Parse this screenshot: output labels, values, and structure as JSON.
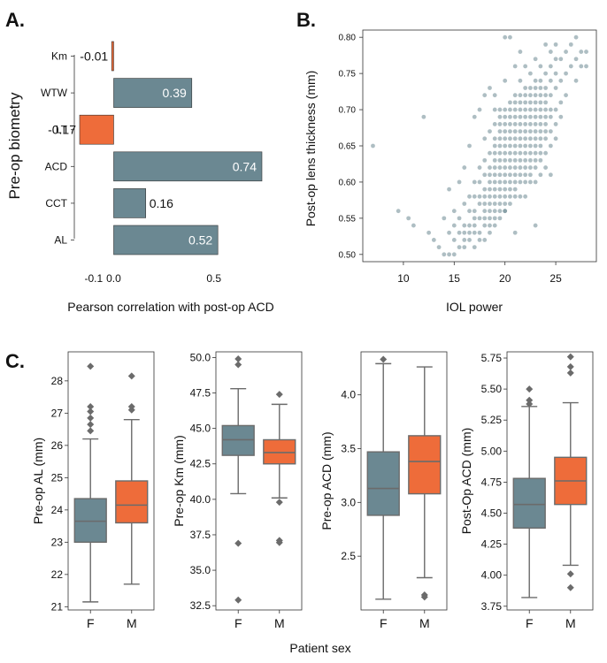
{
  "panel_labels": {
    "a": "A.",
    "b": "B.",
    "c": "C."
  },
  "colors": {
    "gray": "#6b8892",
    "orange": "#ee6c3a",
    "scatter": "#6b8892",
    "axis": "#333333",
    "whisker": "#6b6b6b",
    "outlier": "#6b6b6b"
  },
  "chart_data": [
    {
      "id": "A",
      "type": "bar",
      "orientation": "horizontal",
      "categories": [
        "Km",
        "WTW",
        "LT",
        "ACD",
        "CCT",
        "AL"
      ],
      "values": [
        -0.01,
        0.39,
        -0.17,
        0.74,
        0.16,
        0.52
      ],
      "value_labels": [
        "-0.01",
        "0.39",
        "-0.17",
        "0.74",
        "0.16",
        "0.52"
      ],
      "bar_colors": [
        "orange",
        "gray",
        "orange",
        "gray",
        "gray",
        "gray"
      ],
      "xlabel": "Pearson correlation with post-op ACD",
      "ylabel": "Pre-op biometry",
      "xlim": [
        -0.17,
        0.74
      ],
      "xticks": [
        -0.1,
        0.0,
        0.5
      ],
      "xtick_labels": [
        "-0.1",
        "0.0",
        "0.5"
      ]
    },
    {
      "id": "B",
      "type": "scatter",
      "xlabel": "IOL power",
      "ylabel": "Post-op lens thickness (mm)",
      "xlim": [
        6,
        29
      ],
      "ylim": [
        0.49,
        0.81
      ],
      "xticks": [
        10,
        15,
        20,
        25
      ],
      "xtick_labels": [
        "10",
        "15",
        "20",
        "25"
      ],
      "yticks": [
        0.5,
        0.55,
        0.6,
        0.65,
        0.7,
        0.75,
        0.8
      ],
      "ytick_labels": [
        "0.50",
        "0.55",
        "0.60",
        "0.65",
        "0.70",
        "0.75",
        "0.80"
      ],
      "points": [
        [
          7,
          0.65
        ],
        [
          9.5,
          0.56
        ],
        [
          10.5,
          0.55
        ],
        [
          11,
          0.54
        ],
        [
          12,
          0.69
        ],
        [
          12.5,
          0.53
        ],
        [
          13,
          0.52
        ],
        [
          13.5,
          0.51
        ],
        [
          14,
          0.5
        ],
        [
          14,
          0.55
        ],
        [
          14.5,
          0.5
        ],
        [
          14.5,
          0.53
        ],
        [
          14.5,
          0.59
        ],
        [
          15,
          0.5
        ],
        [
          15,
          0.52
        ],
        [
          15,
          0.54
        ],
        [
          15,
          0.56
        ],
        [
          15.5,
          0.51
        ],
        [
          15.5,
          0.53
        ],
        [
          15.5,
          0.55
        ],
        [
          15.5,
          0.6
        ],
        [
          16,
          0.51
        ],
        [
          16,
          0.52
        ],
        [
          16,
          0.53
        ],
        [
          16,
          0.54
        ],
        [
          16,
          0.57
        ],
        [
          16,
          0.62
        ],
        [
          16.5,
          0.52
        ],
        [
          16.5,
          0.53
        ],
        [
          16.5,
          0.54
        ],
        [
          16.5,
          0.56
        ],
        [
          16.5,
          0.58
        ],
        [
          16.5,
          0.65
        ],
        [
          17,
          0.51
        ],
        [
          17,
          0.53
        ],
        [
          17,
          0.54
        ],
        [
          17,
          0.55
        ],
        [
          17,
          0.56
        ],
        [
          17,
          0.58
        ],
        [
          17,
          0.6
        ],
        [
          17,
          0.69
        ],
        [
          17.5,
          0.52
        ],
        [
          17.5,
          0.53
        ],
        [
          17.5,
          0.55
        ],
        [
          17.5,
          0.57
        ],
        [
          17.5,
          0.58
        ],
        [
          17.5,
          0.6
        ],
        [
          17.5,
          0.62
        ],
        [
          17.5,
          0.7
        ],
        [
          18,
          0.52
        ],
        [
          18,
          0.54
        ],
        [
          18,
          0.55
        ],
        [
          18,
          0.56
        ],
        [
          18,
          0.57
        ],
        [
          18,
          0.58
        ],
        [
          18,
          0.59
        ],
        [
          18,
          0.61
        ],
        [
          18,
          0.63
        ],
        [
          18,
          0.66
        ],
        [
          18,
          0.72
        ],
        [
          18.5,
          0.53
        ],
        [
          18.5,
          0.54
        ],
        [
          18.5,
          0.55
        ],
        [
          18.5,
          0.56
        ],
        [
          18.5,
          0.57
        ],
        [
          18.5,
          0.58
        ],
        [
          18.5,
          0.59
        ],
        [
          18.5,
          0.6
        ],
        [
          18.5,
          0.61
        ],
        [
          18.5,
          0.62
        ],
        [
          18.5,
          0.64
        ],
        [
          18.5,
          0.67
        ],
        [
          18.5,
          0.73
        ],
        [
          19,
          0.54
        ],
        [
          19,
          0.55
        ],
        [
          19,
          0.56
        ],
        [
          19,
          0.57
        ],
        [
          19,
          0.58
        ],
        [
          19,
          0.59
        ],
        [
          19,
          0.6
        ],
        [
          19,
          0.61
        ],
        [
          19,
          0.62
        ],
        [
          19,
          0.63
        ],
        [
          19,
          0.64
        ],
        [
          19,
          0.65
        ],
        [
          19,
          0.66
        ],
        [
          19,
          0.68
        ],
        [
          19,
          0.7
        ],
        [
          19,
          0.72
        ],
        [
          19.5,
          0.55
        ],
        [
          19.5,
          0.56
        ],
        [
          19.5,
          0.57
        ],
        [
          19.5,
          0.58
        ],
        [
          19.5,
          0.59
        ],
        [
          19.5,
          0.6
        ],
        [
          19.5,
          0.61
        ],
        [
          19.5,
          0.62
        ],
        [
          19.5,
          0.63
        ],
        [
          19.5,
          0.64
        ],
        [
          19.5,
          0.65
        ],
        [
          19.5,
          0.66
        ],
        [
          19.5,
          0.67
        ],
        [
          19.5,
          0.68
        ],
        [
          19.5,
          0.69
        ],
        [
          19.5,
          0.7
        ],
        [
          20,
          0.56
        ],
        [
          20,
          0.57
        ],
        [
          20,
          0.58
        ],
        [
          20,
          0.59
        ],
        [
          20,
          0.6
        ],
        [
          20,
          0.61
        ],
        [
          20,
          0.62
        ],
        [
          20,
          0.63
        ],
        [
          20,
          0.64
        ],
        [
          20,
          0.65
        ],
        [
          20,
          0.66
        ],
        [
          20,
          0.67
        ],
        [
          20,
          0.68
        ],
        [
          20,
          0.69
        ],
        [
          20,
          0.7
        ],
        [
          20,
          0.74
        ],
        [
          20,
          0.8
        ],
        [
          20.5,
          0.57
        ],
        [
          20.5,
          0.58
        ],
        [
          20.5,
          0.59
        ],
        [
          20.5,
          0.6
        ],
        [
          20.5,
          0.61
        ],
        [
          20.5,
          0.62
        ],
        [
          20.5,
          0.63
        ],
        [
          20.5,
          0.64
        ],
        [
          20.5,
          0.65
        ],
        [
          20.5,
          0.66
        ],
        [
          20.5,
          0.67
        ],
        [
          20.5,
          0.68
        ],
        [
          20.5,
          0.69
        ],
        [
          20.5,
          0.7
        ],
        [
          20.5,
          0.71
        ],
        [
          20.5,
          0.8
        ],
        [
          21,
          0.58
        ],
        [
          21,
          0.59
        ],
        [
          21,
          0.6
        ],
        [
          21,
          0.61
        ],
        [
          21,
          0.62
        ],
        [
          21,
          0.63
        ],
        [
          21,
          0.64
        ],
        [
          21,
          0.65
        ],
        [
          21,
          0.66
        ],
        [
          21,
          0.67
        ],
        [
          21,
          0.68
        ],
        [
          21,
          0.69
        ],
        [
          21,
          0.7
        ],
        [
          21,
          0.71
        ],
        [
          21,
          0.72
        ],
        [
          21,
          0.76
        ],
        [
          21.5,
          0.58
        ],
        [
          21.5,
          0.6
        ],
        [
          21.5,
          0.61
        ],
        [
          21.5,
          0.62
        ],
        [
          21.5,
          0.63
        ],
        [
          21.5,
          0.64
        ],
        [
          21.5,
          0.65
        ],
        [
          21.5,
          0.66
        ],
        [
          21.5,
          0.67
        ],
        [
          21.5,
          0.68
        ],
        [
          21.5,
          0.69
        ],
        [
          21.5,
          0.7
        ],
        [
          21.5,
          0.71
        ],
        [
          21.5,
          0.72
        ],
        [
          21.5,
          0.74
        ],
        [
          21.5,
          0.78
        ],
        [
          22,
          0.58
        ],
        [
          22,
          0.6
        ],
        [
          22,
          0.61
        ],
        [
          22,
          0.62
        ],
        [
          22,
          0.63
        ],
        [
          22,
          0.64
        ],
        [
          22,
          0.65
        ],
        [
          22,
          0.66
        ],
        [
          22,
          0.67
        ],
        [
          22,
          0.68
        ],
        [
          22,
          0.69
        ],
        [
          22,
          0.7
        ],
        [
          22,
          0.71
        ],
        [
          22,
          0.72
        ],
        [
          22,
          0.73
        ],
        [
          22,
          0.76
        ],
        [
          22.5,
          0.6
        ],
        [
          22.5,
          0.61
        ],
        [
          22.5,
          0.62
        ],
        [
          22.5,
          0.63
        ],
        [
          22.5,
          0.64
        ],
        [
          22.5,
          0.65
        ],
        [
          22.5,
          0.66
        ],
        [
          22.5,
          0.67
        ],
        [
          22.5,
          0.68
        ],
        [
          22.5,
          0.69
        ],
        [
          22.5,
          0.7
        ],
        [
          22.5,
          0.71
        ],
        [
          22.5,
          0.72
        ],
        [
          22.5,
          0.73
        ],
        [
          22.5,
          0.75
        ],
        [
          23,
          0.6
        ],
        [
          23,
          0.62
        ],
        [
          23,
          0.63
        ],
        [
          23,
          0.64
        ],
        [
          23,
          0.65
        ],
        [
          23,
          0.66
        ],
        [
          23,
          0.67
        ],
        [
          23,
          0.68
        ],
        [
          23,
          0.69
        ],
        [
          23,
          0.7
        ],
        [
          23,
          0.71
        ],
        [
          23,
          0.72
        ],
        [
          23,
          0.73
        ],
        [
          23,
          0.74
        ],
        [
          23,
          0.77
        ],
        [
          23.5,
          0.61
        ],
        [
          23.5,
          0.63
        ],
        [
          23.5,
          0.64
        ],
        [
          23.5,
          0.65
        ],
        [
          23.5,
          0.66
        ],
        [
          23.5,
          0.67
        ],
        [
          23.5,
          0.68
        ],
        [
          23.5,
          0.69
        ],
        [
          23.5,
          0.7
        ],
        [
          23.5,
          0.71
        ],
        [
          23.5,
          0.72
        ],
        [
          23.5,
          0.73
        ],
        [
          23.5,
          0.74
        ],
        [
          23.5,
          0.76
        ],
        [
          24,
          0.62
        ],
        [
          24,
          0.64
        ],
        [
          24,
          0.66
        ],
        [
          24,
          0.67
        ],
        [
          24,
          0.68
        ],
        [
          24,
          0.69
        ],
        [
          24,
          0.7
        ],
        [
          24,
          0.71
        ],
        [
          24,
          0.72
        ],
        [
          24,
          0.73
        ],
        [
          24,
          0.75
        ],
        [
          24,
          0.79
        ],
        [
          24.5,
          0.61
        ],
        [
          24.5,
          0.65
        ],
        [
          24.5,
          0.67
        ],
        [
          24.5,
          0.69
        ],
        [
          24.5,
          0.7
        ],
        [
          24.5,
          0.72
        ],
        [
          24.5,
          0.74
        ],
        [
          24.5,
          0.76
        ],
        [
          24.5,
          0.78
        ],
        [
          25,
          0.66
        ],
        [
          25,
          0.68
        ],
        [
          25,
          0.7
        ],
        [
          25,
          0.73
        ],
        [
          25,
          0.75
        ],
        [
          25,
          0.77
        ],
        [
          25,
          0.79
        ],
        [
          25.5,
          0.69
        ],
        [
          25.5,
          0.71
        ],
        [
          25.5,
          0.74
        ],
        [
          25.5,
          0.77
        ],
        [
          26,
          0.72
        ],
        [
          26,
          0.75
        ],
        [
          26,
          0.78
        ],
        [
          26.5,
          0.76
        ],
        [
          26.5,
          0.79
        ],
        [
          27,
          0.74
        ],
        [
          27,
          0.77
        ],
        [
          27,
          0.8
        ],
        [
          27.5,
          0.76
        ],
        [
          27.5,
          0.78
        ],
        [
          28,
          0.76
        ],
        [
          28,
          0.78
        ],
        [
          23,
          0.54
        ],
        [
          21,
          0.53
        ],
        [
          20,
          0.56
        ]
      ]
    },
    {
      "id": "C1",
      "type": "box",
      "ylabel": "Pre-op AL (mm)",
      "ylim": [
        20.9,
        28.9
      ],
      "yticks": [
        21,
        22,
        23,
        24,
        25,
        26,
        27,
        28
      ],
      "ytick_labels": [
        "21",
        "22",
        "23",
        "24",
        "25",
        "26",
        "27",
        "28"
      ],
      "categories": [
        "F",
        "M"
      ],
      "boxes": [
        {
          "q1": 23.0,
          "median": 23.65,
          "q3": 24.35,
          "whislo": 21.15,
          "whishi": 26.2,
          "fliers": [
            26.45,
            26.65,
            26.85,
            27.05,
            27.2,
            28.45
          ]
        },
        {
          "q1": 23.6,
          "median": 24.15,
          "q3": 24.9,
          "whislo": 21.7,
          "whishi": 26.8,
          "fliers": [
            27.1,
            27.2,
            28.15
          ]
        }
      ]
    },
    {
      "id": "C2",
      "type": "box",
      "ylabel": "Pre-op Km (mm)",
      "ylim": [
        32.2,
        50.4
      ],
      "yticks": [
        32.5,
        35.0,
        37.5,
        40.0,
        42.5,
        45.0,
        47.5,
        50.0
      ],
      "ytick_labels": [
        "32.5",
        "35.0",
        "37.5",
        "40.0",
        "42.5",
        "45.0",
        "47.5",
        "50.0"
      ],
      "categories": [
        "F",
        "M"
      ],
      "boxes": [
        {
          "q1": 43.1,
          "median": 44.2,
          "q3": 45.2,
          "whislo": 40.4,
          "whishi": 47.8,
          "fliers": [
            49.5,
            49.9,
            36.9,
            32.9
          ]
        },
        {
          "q1": 42.5,
          "median": 43.3,
          "q3": 44.2,
          "whislo": 40.1,
          "whishi": 46.7,
          "fliers": [
            47.4,
            39.8,
            37.1,
            36.95
          ]
        }
      ]
    },
    {
      "id": "C3",
      "type": "box",
      "ylabel": "Pre-op ACD  (mm)",
      "ylim": [
        2.0,
        4.4
      ],
      "yticks": [
        2.5,
        3.0,
        3.5,
        4.0
      ],
      "ytick_labels": [
        "2.5",
        "3.0",
        "3.5",
        "4.0"
      ],
      "categories": [
        "F",
        "M"
      ],
      "boxes": [
        {
          "q1": 2.88,
          "median": 3.13,
          "q3": 3.47,
          "whislo": 2.1,
          "whishi": 4.29,
          "fliers": [
            4.33
          ]
        },
        {
          "q1": 3.08,
          "median": 3.38,
          "q3": 3.62,
          "whislo": 2.3,
          "whishi": 4.26,
          "fliers": [
            2.14,
            2.12
          ]
        }
      ]
    },
    {
      "id": "C4",
      "type": "box",
      "ylabel": "Post-Op ACD (mm)",
      "ylim": [
        3.72,
        5.8
      ],
      "yticks": [
        3.75,
        4.0,
        4.25,
        4.5,
        4.75,
        5.0,
        5.25,
        5.5,
        5.75
      ],
      "ytick_labels": [
        "3.75",
        "4.00",
        "4.25",
        "4.50",
        "4.75",
        "5.00",
        "5.25",
        "5.50",
        "5.75"
      ],
      "categories": [
        "F",
        "M"
      ],
      "boxes": [
        {
          "q1": 4.38,
          "median": 4.57,
          "q3": 4.78,
          "whislo": 3.82,
          "whishi": 5.36,
          "fliers": [
            5.38,
            5.41,
            5.5
          ]
        },
        {
          "q1": 4.57,
          "median": 4.76,
          "q3": 4.95,
          "whislo": 4.08,
          "whishi": 5.39,
          "fliers": [
            5.63,
            5.68,
            5.76,
            4.01,
            3.9
          ]
        }
      ]
    }
  ],
  "shared_xlabel_c": "Patient sex"
}
